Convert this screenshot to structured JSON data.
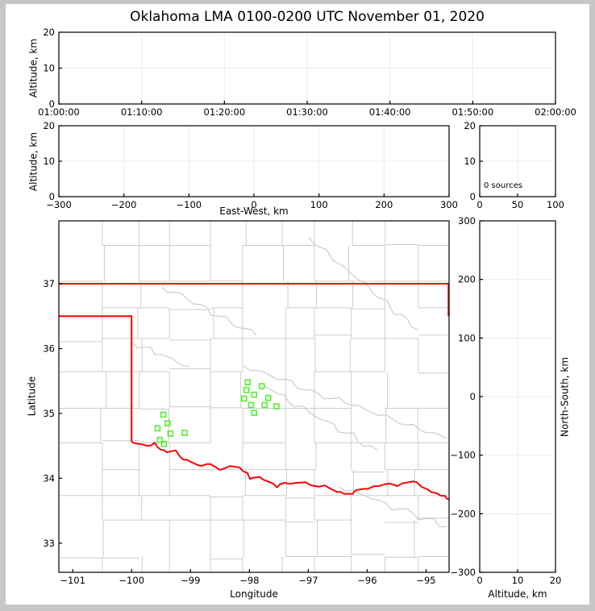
{
  "title": "Oklahoma LMA 0100-0200 UTC November 01, 2020",
  "colors": {
    "state_border": "#ff0000",
    "station_marker": "#55ee33",
    "county_line": "#cccccc",
    "gridline": "#ececec",
    "axis": "#000000",
    "frame": "#c6c6c6",
    "background": "#ffffff"
  },
  "panels": {
    "time_height": {
      "ylabel": "Altitude, km",
      "yticks": [
        "20",
        "10",
        "0"
      ],
      "xticks": [
        "01:00:00",
        "01:10:00",
        "01:20:00",
        "01:30:00",
        "01:40:00",
        "01:50:00",
        "02:00:00"
      ]
    },
    "ew_height": {
      "ylabel": "Altitude, km",
      "xlabel": "East-West, km",
      "yticks": [
        "20",
        "10",
        "0"
      ],
      "xticks": [
        "−300",
        "−200",
        "−100",
        "0",
        "100",
        "200",
        "300"
      ]
    },
    "histogram": {
      "annotation": "0 sources",
      "yticks": [
        "20",
        "10",
        "0"
      ],
      "xticks": [
        "0",
        "50",
        "100"
      ]
    },
    "map": {
      "ylabel": "Latitude",
      "xlabel": "Longitude",
      "yticks": [
        "37",
        "36",
        "35",
        "34",
        "33"
      ],
      "xticks": [
        "−101",
        "−100",
        "−99",
        "−98",
        "−97",
        "−96",
        "−95"
      ]
    },
    "ns_height": {
      "ylabel": "North-South, km",
      "xlabel": "Altitude, km",
      "yticks": [
        "300",
        "200",
        "100",
        "0",
        "−100",
        "−200",
        "−300"
      ],
      "xticks": [
        "0",
        "10",
        "20"
      ]
    }
  },
  "chart_data": [
    {
      "name": "altitude_vs_time",
      "type": "scatter",
      "ylabel": "Altitude, km",
      "ylim": [
        0,
        20
      ],
      "xlim": [
        "01:00:00",
        "02:00:00"
      ],
      "x_ticks": [
        "01:00:00",
        "01:10:00",
        "01:20:00",
        "01:30:00",
        "01:40:00",
        "01:50:00",
        "02:00:00"
      ],
      "y_ticks": [
        20,
        10,
        0
      ],
      "series": [
        {
          "name": "lma_sources",
          "points": []
        }
      ]
    },
    {
      "name": "altitude_vs_eastwest",
      "type": "scatter",
      "xlabel": "East-West, km",
      "ylabel": "Altitude, km",
      "xlim": [
        -300,
        300
      ],
      "ylim": [
        0,
        20
      ],
      "x_ticks": [
        -300,
        -200,
        -100,
        0,
        100,
        200,
        300
      ],
      "y_ticks": [
        20,
        10,
        0
      ],
      "series": [
        {
          "name": "lma_sources",
          "points": []
        }
      ]
    },
    {
      "name": "source_count_histogram",
      "type": "line",
      "xlim": [
        0,
        100
      ],
      "ylim": [
        0,
        20
      ],
      "x_ticks": [
        0,
        50,
        100
      ],
      "y_ticks": [
        20,
        10,
        0
      ],
      "annotation": "0 sources",
      "series": [
        {
          "name": "source_counts",
          "points": []
        }
      ]
    },
    {
      "name": "plan_view_map",
      "type": "scatter",
      "xlabel": "Longitude",
      "ylabel": "Latitude",
      "xlim": [
        -101.235,
        -94.61
      ],
      "ylim": [
        32.55,
        37.97
      ],
      "x_ticks": [
        -101,
        -100,
        -99,
        -98,
        -97,
        -96,
        -95
      ],
      "y_ticks": [
        37,
        36,
        35,
        34,
        33
      ],
      "series": [
        {
          "name": "lma_stations",
          "marker": "open-square",
          "color": "#55ee33",
          "points": [
            [
              -98.03,
              35.48
            ],
            [
              -97.79,
              35.42
            ],
            [
              -98.05,
              35.36
            ],
            [
              -97.92,
              35.29
            ],
            [
              -98.09,
              35.23
            ],
            [
              -97.68,
              35.24
            ],
            [
              -97.97,
              35.13
            ],
            [
              -97.74,
              35.13
            ],
            [
              -97.54,
              35.11
            ],
            [
              -97.92,
              35.01
            ],
            [
              -99.46,
              34.98
            ],
            [
              -99.39,
              34.85
            ],
            [
              -99.56,
              34.77
            ],
            [
              -99.34,
              34.69
            ],
            [
              -99.1,
              34.7
            ],
            [
              -99.52,
              34.59
            ],
            [
              -99.45,
              34.53
            ]
          ]
        },
        {
          "name": "lma_sources",
          "points": []
        }
      ]
    },
    {
      "name": "northsouth_vs_altitude",
      "type": "scatter",
      "xlabel": "Altitude, km",
      "ylabel": "North-South, km",
      "xlim": [
        0,
        20
      ],
      "ylim": [
        -300,
        300
      ],
      "x_ticks": [
        0,
        10,
        20
      ],
      "y_ticks": [
        300,
        200,
        100,
        0,
        -100,
        -200,
        -300
      ],
      "series": [
        {
          "name": "lma_sources",
          "points": []
        }
      ]
    }
  ],
  "basemap": {
    "border_color": "#ff0000",
    "kansas_border_lat": 37,
    "panhandle_lat": 36.5,
    "panhandle_corner_lon": -100,
    "panhandle_south_lat": 34.565,
    "east_border_lon": -94.62,
    "east_border_south_lat": 36.5,
    "red_river": [
      [
        -100.0,
        34.56
      ],
      [
        -99.87,
        34.53
      ],
      [
        -99.74,
        34.5
      ],
      [
        -99.61,
        34.55
      ],
      [
        -99.5,
        34.44
      ],
      [
        -99.4,
        34.4
      ],
      [
        -99.25,
        34.43
      ],
      [
        -99.13,
        34.29
      ],
      [
        -98.99,
        34.25
      ],
      [
        -98.81,
        34.19
      ],
      [
        -98.66,
        34.22
      ],
      [
        -98.5,
        34.13
      ],
      [
        -98.33,
        34.19
      ],
      [
        -98.17,
        34.17
      ],
      [
        -98.03,
        34.08
      ],
      [
        -97.99,
        33.99
      ],
      [
        -97.83,
        34.02
      ],
      [
        -97.68,
        33.95
      ],
      [
        -97.53,
        33.86
      ],
      [
        -97.4,
        33.93
      ],
      [
        -97.21,
        33.93
      ],
      [
        -97.05,
        33.94
      ],
      [
        -96.9,
        33.88
      ],
      [
        -96.72,
        33.89
      ],
      [
        -96.51,
        33.79
      ],
      [
        -96.39,
        33.76
      ],
      [
        -96.25,
        33.76
      ],
      [
        -96.17,
        33.82
      ],
      [
        -95.98,
        33.84
      ],
      [
        -95.8,
        33.88
      ],
      [
        -95.62,
        33.92
      ],
      [
        -95.49,
        33.88
      ],
      [
        -95.29,
        33.94
      ],
      [
        -95.16,
        33.94
      ],
      [
        -94.98,
        33.83
      ],
      [
        -94.82,
        33.77
      ],
      [
        -94.68,
        33.73
      ],
      [
        -94.61,
        33.67
      ]
    ],
    "rivers": [
      {
        "from": [
          -96.99,
          37.72
        ],
        "to": [
          -95.14,
          36.29
        ]
      },
      {
        "from": [
          -99.48,
          36.95
        ],
        "to": [
          -97.88,
          36.2
        ]
      },
      {
        "from": [
          -99.98,
          36.08
        ],
        "to": [
          -99.02,
          35.73
        ]
      },
      {
        "from": [
          -97.74,
          35.42
        ],
        "to": [
          -95.83,
          34.43
        ]
      },
      {
        "from": [
          -98.09,
          35.73
        ],
        "to": [
          -94.65,
          34.61
        ]
      },
      {
        "from": [
          -96.49,
          33.87
        ],
        "to": [
          -94.65,
          33.25
        ]
      }
    ]
  }
}
